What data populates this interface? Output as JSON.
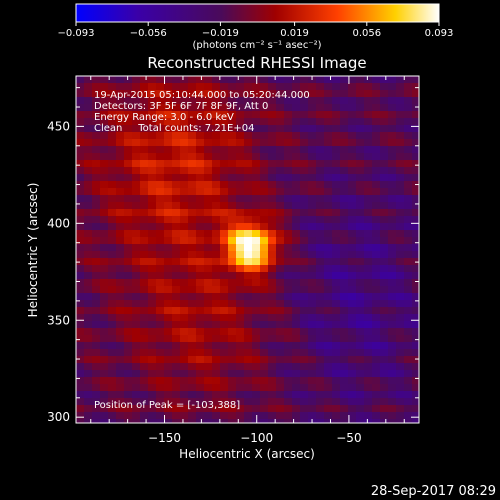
{
  "chart_data": {
    "type": "heatmap",
    "title": "Reconstructed RHESSI Image",
    "xlabel": "Heliocentric X (arcsec)",
    "ylabel": "Heliocentric Y (arcsec)",
    "xlim": [
      -198,
      -12
    ],
    "ylim": [
      297,
      476
    ],
    "x_ticks": [
      -150,
      -100,
      -50
    ],
    "x_tick_labels": [
      "−150",
      "−100",
      "−50"
    ],
    "y_ticks": [
      300,
      350,
      400,
      450
    ],
    "y_tick_labels": [
      "300",
      "350",
      "400",
      "450"
    ],
    "colorbar": {
      "min": -0.093,
      "max": 0.093,
      "ticks": [
        -0.093,
        -0.056,
        -0.019,
        0.019,
        0.056,
        0.093
      ],
      "tick_labels": [
        "−0.093",
        "−0.056",
        "−0.019",
        "0.019",
        "0.056",
        "0.093"
      ],
      "unit_label": "(photons cm⁻² s⁻¹ asec⁻²)",
      "colors": [
        "#0000ff",
        "#3a00a8",
        "#4a0a5a",
        "#a00000",
        "#ff4000",
        "#ffd000",
        "#ffffff"
      ]
    },
    "peak": {
      "x": -103,
      "y": 388,
      "value": 0.093
    },
    "annotations": [
      "19-Apr-2015 05:10:44.000 to 05:20:44.000",
      "Detectors: 3F 5F 6F 7F 8F 9F, Att 0",
      "Energy Range: 3.0 - 6.0 keV",
      "Clean     Total counts: 7.21E+04"
    ],
    "peak_label": "Position of Peak = [-103,388]"
  },
  "footer": {
    "timestamp": "28-Sep-2017 08:29"
  }
}
